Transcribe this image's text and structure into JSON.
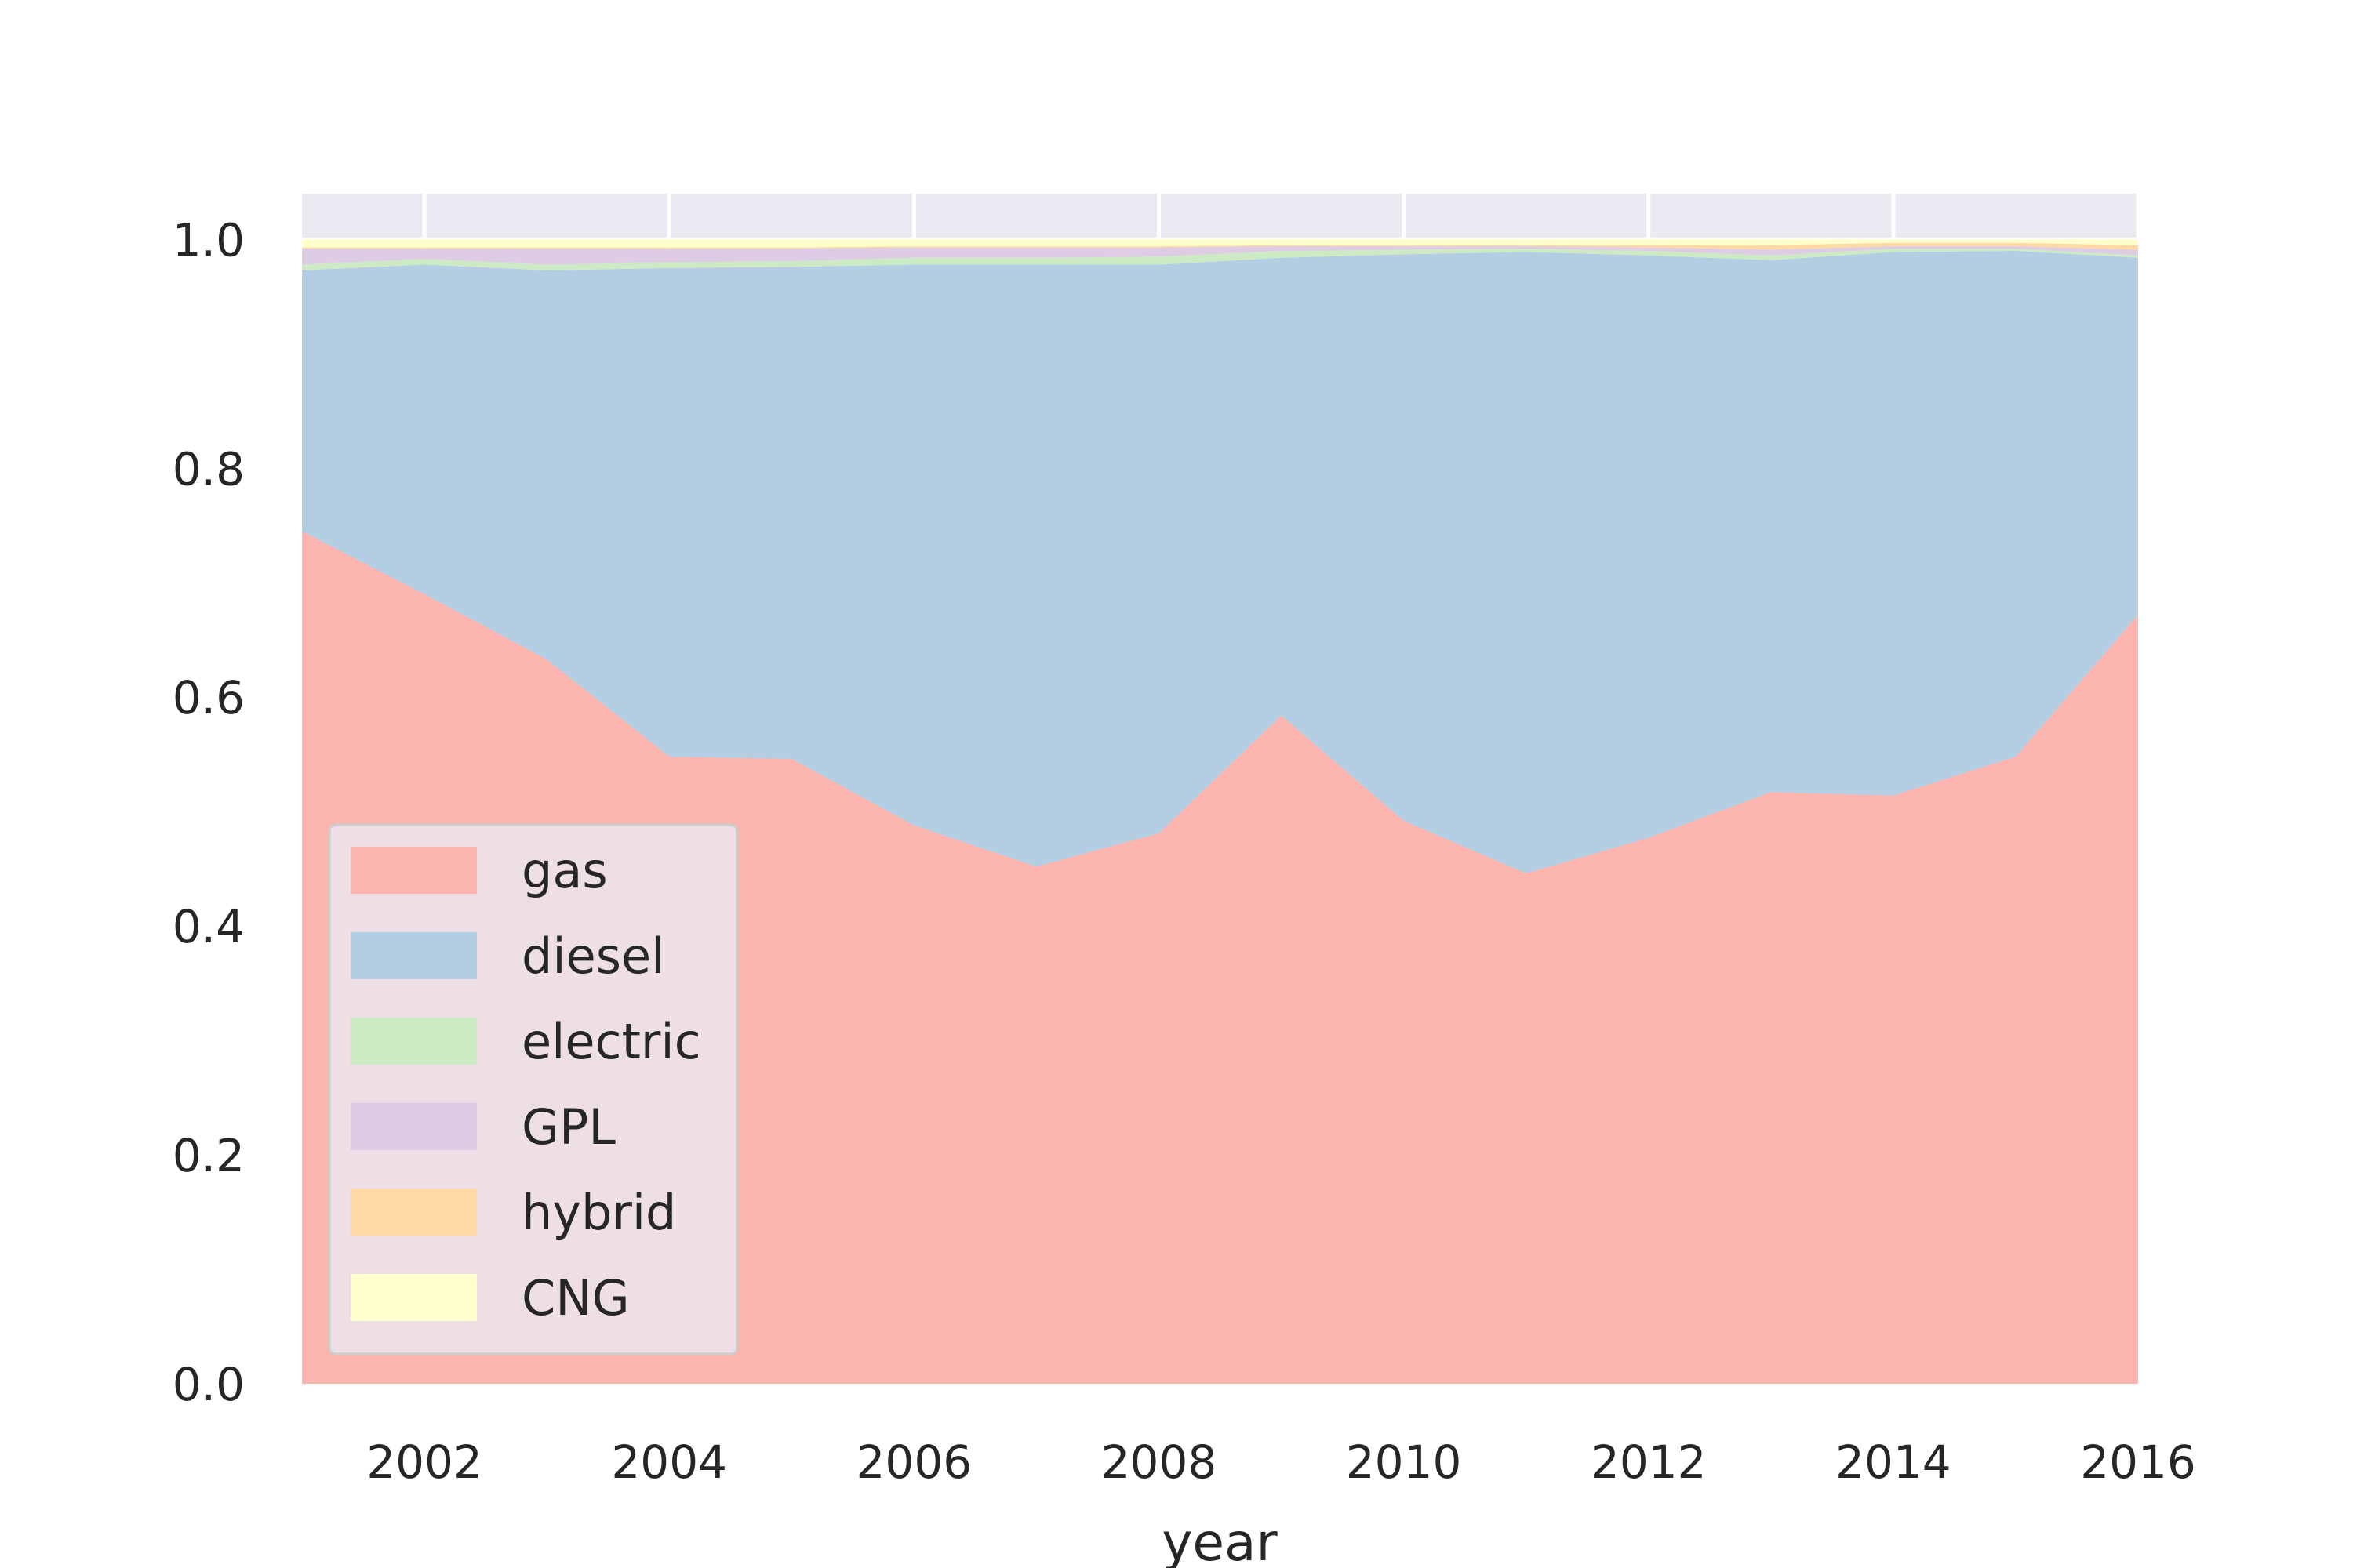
{
  "chart_data": {
    "type": "area",
    "stacked": true,
    "x": [
      2001,
      2002,
      2003,
      2004,
      2005,
      2006,
      2007,
      2008,
      2009,
      2010,
      2011,
      2012,
      2013,
      2014,
      2015,
      2016
    ],
    "series": [
      {
        "name": "gas",
        "color": "#fbb4ae",
        "values": [
          0.745,
          0.69,
          0.633,
          0.548,
          0.546,
          0.488,
          0.452,
          0.481,
          0.584,
          0.492,
          0.446,
          0.477,
          0.517,
          0.514,
          0.548,
          0.672
        ]
      },
      {
        "name": "diesel",
        "color": "#b3cde3",
        "values": [
          0.228,
          0.288,
          0.34,
          0.427,
          0.43,
          0.49,
          0.526,
          0.497,
          0.4,
          0.495,
          0.543,
          0.509,
          0.465,
          0.475,
          0.442,
          0.312
        ]
      },
      {
        "name": "electric",
        "color": "#ccebc5",
        "values": [
          0.005,
          0.005,
          0.005,
          0.005,
          0.005,
          0.006,
          0.006,
          0.007,
          0.006,
          0.004,
          0.003,
          0.004,
          0.004,
          0.003,
          0.002,
          0.002
        ]
      },
      {
        "name": "GPL",
        "color": "#decbe4",
        "values": [
          0.014,
          0.009,
          0.014,
          0.012,
          0.011,
          0.009,
          0.009,
          0.008,
          0.004,
          0.003,
          0.002,
          0.003,
          0.005,
          0.002,
          0.002,
          0.005
        ]
      },
      {
        "name": "hybrid",
        "color": "#fed9a6",
        "values": [
          0.001,
          0.001,
          0.001,
          0.001,
          0.001,
          0.001,
          0.001,
          0.001,
          0.001,
          0.001,
          0.001,
          0.002,
          0.004,
          0.003,
          0.003,
          0.004
        ]
      },
      {
        "name": "CNG",
        "color": "#ffffcc",
        "values": [
          0.007,
          0.007,
          0.007,
          0.007,
          0.007,
          0.006,
          0.006,
          0.006,
          0.005,
          0.005,
          0.005,
          0.005,
          0.005,
          0.003,
          0.003,
          0.005
        ]
      }
    ],
    "xlabel": "year",
    "ylabel": "",
    "title": "",
    "xlim": [
      2001,
      2016
    ],
    "ylim": [
      0,
      1.04
    ],
    "xticks": [
      "2002",
      "2004",
      "2006",
      "2008",
      "2010",
      "2012",
      "2014",
      "2016"
    ],
    "yticks": [
      "0.0",
      "0.2",
      "0.4",
      "0.6",
      "0.8",
      "1.0"
    ],
    "grid": true,
    "legend_position": "lower-left",
    "background_color": "#eaeaf2"
  }
}
